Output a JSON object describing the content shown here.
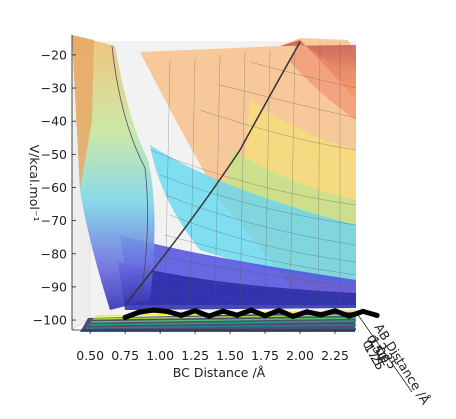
{
  "chart_data": {
    "type": "surface",
    "title": "",
    "xlabel": "BC Distance /Å",
    "ylabel": "V/kcal.mol⁻¹",
    "zlabel_side": "AB Distance /Å",
    "x_ticks": [
      0.5,
      0.75,
      1.0,
      1.25,
      1.5,
      1.75,
      2.0,
      2.25
    ],
    "x_tick_labels": [
      "0.50",
      "0.75",
      "1.00",
      "1.25",
      "1.50",
      "1.75",
      "2.00",
      "2.25"
    ],
    "xlim": [
      0.37,
      2.4
    ],
    "y_ticks": [
      -20,
      -30,
      -40,
      -50,
      -60,
      -70,
      -80,
      -90,
      -100
    ],
    "y_tick_labels": [
      "−20",
      "−30",
      "−40",
      "−50",
      "−60",
      "−70",
      "−80",
      "−90",
      "−100"
    ],
    "ylim": [
      -103,
      -14
    ],
    "depth_tick_labels": [
      "0.50",
      "0.75",
      "1.00",
      "1.25",
      "2.25"
    ],
    "colormap": "jet",
    "grid": true,
    "trajectory": {
      "x": [
        0.75,
        0.85,
        0.95,
        1.05,
        1.15,
        1.25,
        1.35,
        1.45,
        1.55,
        1.65,
        1.75,
        1.85,
        1.95,
        2.05,
        2.15,
        2.25,
        2.35,
        2.45,
        2.55
      ],
      "y": [
        -99.2,
        -97.6,
        -97.0,
        -97.4,
        -98.6,
        -97.2,
        -98.8,
        -97.3,
        -98.5,
        -97.0,
        -98.7,
        -97.1,
        -98.9,
        -97.5,
        -98.4,
        -97.2,
        -98.8,
        -97.4,
        -98.6
      ],
      "color": "#000000"
    }
  }
}
